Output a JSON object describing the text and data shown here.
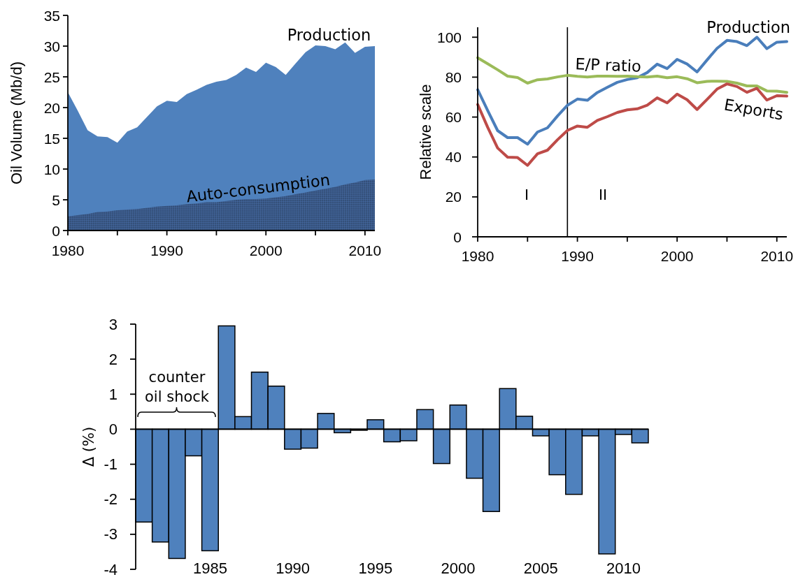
{
  "chart_data": [
    {
      "type": "area",
      "ylabel": "Oil Volume (Mb/d)",
      "x": [
        1980,
        1981,
        1982,
        1983,
        1984,
        1985,
        1986,
        1987,
        1988,
        1989,
        1990,
        1991,
        1992,
        1993,
        1994,
        1995,
        1996,
        1997,
        1998,
        1999,
        2000,
        2001,
        2002,
        2003,
        2004,
        2005,
        2006,
        2007,
        2008,
        2009,
        2010,
        2011
      ],
      "xlim": [
        1980,
        2011
      ],
      "xticks": [
        1980,
        {
          "value": 1985,
          "label": null
        },
        1990,
        {
          "value": 1995,
          "label": null
        },
        2000,
        {
          "value": 2005,
          "label": null
        },
        2010
      ],
      "ylim": [
        0,
        35
      ],
      "yticks": [
        0,
        5,
        10,
        15,
        20,
        25,
        30,
        35
      ],
      "series": [
        {
          "name": "Production",
          "color": "#4f81bd",
          "values": [
            22.5,
            19.5,
            16.3,
            15.3,
            15.2,
            14.3,
            16.1,
            16.8,
            18.5,
            20.2,
            21.1,
            20.9,
            22.2,
            22.9,
            23.7,
            24.2,
            24.5,
            25.3,
            26.5,
            25.8,
            27.3,
            26.6,
            25.3,
            27.2,
            29.0,
            30.1,
            30.0,
            29.5,
            30.6,
            28.9,
            29.9,
            30.0
          ]
        },
        {
          "name": "Auto-consumption",
          "color": "#34507a",
          "values": [
            2.3,
            2.5,
            2.7,
            3.0,
            3.1,
            3.3,
            3.4,
            3.5,
            3.7,
            3.9,
            4.0,
            4.1,
            4.3,
            4.4,
            4.6,
            4.6,
            4.8,
            5.0,
            5.1,
            5.1,
            5.2,
            5.4,
            5.6,
            5.9,
            6.2,
            6.5,
            6.8,
            7.1,
            7.5,
            7.8,
            8.2,
            8.3
          ]
        }
      ]
    },
    {
      "type": "line",
      "ylabel": "Relative scale",
      "x": [
        1980,
        1981,
        1982,
        1983,
        1984,
        1985,
        1986,
        1987,
        1988,
        1989,
        1990,
        1991,
        1992,
        1993,
        1994,
        1995,
        1996,
        1997,
        1998,
        1999,
        2000,
        2001,
        2002,
        2003,
        2004,
        2005,
        2006,
        2007,
        2008,
        2009,
        2010,
        2011
      ],
      "xlim": [
        1980,
        2011
      ],
      "xticks": [
        1980,
        {
          "value": 1985,
          "label": null
        },
        1990,
        {
          "value": 1995,
          "label": null
        },
        2000,
        {
          "value": 2005,
          "label": null
        },
        2010
      ],
      "ylim": [
        0,
        105
      ],
      "yticks": [
        0,
        20,
        40,
        60,
        80,
        100
      ],
      "series": [
        {
          "name": "Production",
          "color": "#4a7ebb",
          "values": [
            73.7,
            63.3,
            53.2,
            49.7,
            49.7,
            46.4,
            52.5,
            54.6,
            60.5,
            65.9,
            69.0,
            68.4,
            72.3,
            74.9,
            77.4,
            78.8,
            79.7,
            82.3,
            86.5,
            84.3,
            88.9,
            86.6,
            82.6,
            88.6,
            94.4,
            98.4,
            97.8,
            95.8,
            100,
            94.3,
            97.5,
            97.8
          ]
        },
        {
          "name": "E/P ratio",
          "color": "#9bbb59",
          "values": [
            89.7,
            86.7,
            83.7,
            80.5,
            79.8,
            77.0,
            78.7,
            79.1,
            80.1,
            80.9,
            80.4,
            80.1,
            80.5,
            80.5,
            80.4,
            80.5,
            80.2,
            80.1,
            80.5,
            79.7,
            80.2,
            79.2,
            77.2,
            77.9,
            78.0,
            77.9,
            77.0,
            75.6,
            75.6,
            73.1,
            73.0,
            72.4
          ]
        },
        {
          "name": "Exports",
          "color": "#be4b48",
          "values": [
            66.3,
            54.9,
            44.5,
            39.9,
            39.7,
            35.8,
            41.6,
            43.4,
            48.6,
            53.3,
            55.5,
            54.9,
            58.3,
            60.2,
            62.3,
            63.6,
            64.1,
            65.9,
            69.6,
            67.1,
            71.5,
            68.7,
            63.8,
            68.8,
            74.0,
            76.6,
            75.3,
            72.4,
            74.4,
            68.5,
            70.7,
            70.5
          ]
        }
      ],
      "ref_lines": [
        {
          "axis": "x",
          "value": 1989,
          "color": "#000000"
        }
      ],
      "annotations": [
        "I",
        "II"
      ]
    },
    {
      "type": "bar",
      "ylabel": "Δ (%)",
      "x": [
        1981,
        1982,
        1983,
        1984,
        1985,
        1986,
        1987,
        1988,
        1989,
        1990,
        1991,
        1992,
        1993,
        1994,
        1995,
        1996,
        1997,
        1998,
        1999,
        2000,
        2001,
        2002,
        2003,
        2004,
        2005,
        2006,
        2007,
        2008,
        2009,
        2010,
        2011
      ],
      "xlim": [
        1980.5,
        2011.5
      ],
      "xticks": [
        1985,
        1990,
        1995,
        2000,
        2005,
        2010
      ],
      "ylim": [
        -4,
        3
      ],
      "yticks": [
        -4,
        -3,
        -2,
        -1,
        0,
        1,
        2,
        3
      ],
      "color": "#4f81bd",
      "values": [
        -2.65,
        -3.22,
        -3.69,
        -0.76,
        -3.47,
        2.95,
        0.36,
        1.63,
        1.23,
        -0.57,
        -0.54,
        0.45,
        -0.1,
        -0.03,
        0.27,
        -0.36,
        -0.33,
        0.56,
        -0.98,
        0.69,
        -1.4,
        -2.35,
        1.16,
        0.37,
        -0.19,
        -1.3,
        -1.86,
        -0.19,
        -3.56,
        -0.15,
        -0.39
      ],
      "annotations": [
        "counter\noil shock"
      ]
    }
  ]
}
